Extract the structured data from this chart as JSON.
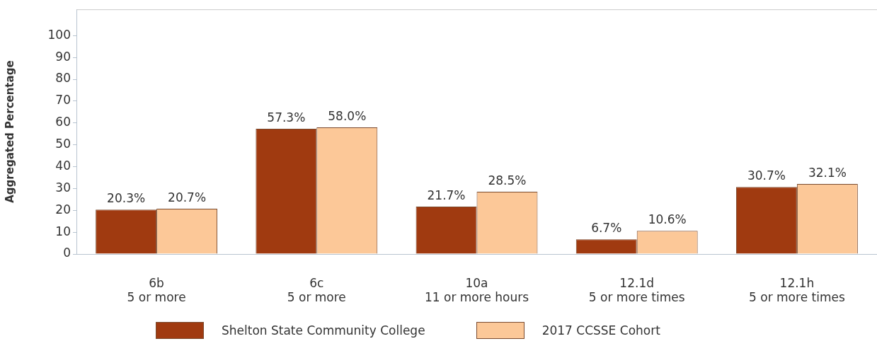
{
  "chart_data": {
    "type": "bar",
    "ylabel": "Aggregated Percentage",
    "categories": [
      "6b\n5 or more",
      "6c\n5 or more",
      "10a\n11 or more hours",
      "12.1d\n5 or more times",
      "12.1h\n5 or more times"
    ],
    "series": [
      {
        "name": "Shelton State Community College",
        "color": "#a03a10",
        "values": [
          20.3,
          57.3,
          21.7,
          6.7,
          30.7
        ],
        "value_labels": [
          "20.3%",
          "57.3%",
          "21.7%",
          "6.7%",
          "30.7%"
        ]
      },
      {
        "name": "2017 CCSSE Cohort",
        "color": "#fcc898",
        "values": [
          20.7,
          58.0,
          28.5,
          10.6,
          32.1
        ],
        "value_labels": [
          "20.7%",
          "58.0%",
          "28.5%",
          "10.6%",
          "32.1%"
        ]
      }
    ],
    "ylim": [
      0,
      112
    ],
    "yticks": [
      0,
      10,
      20,
      30,
      40,
      50,
      60,
      70,
      80,
      90,
      100
    ],
    "grid": false,
    "legend": "bottom"
  }
}
